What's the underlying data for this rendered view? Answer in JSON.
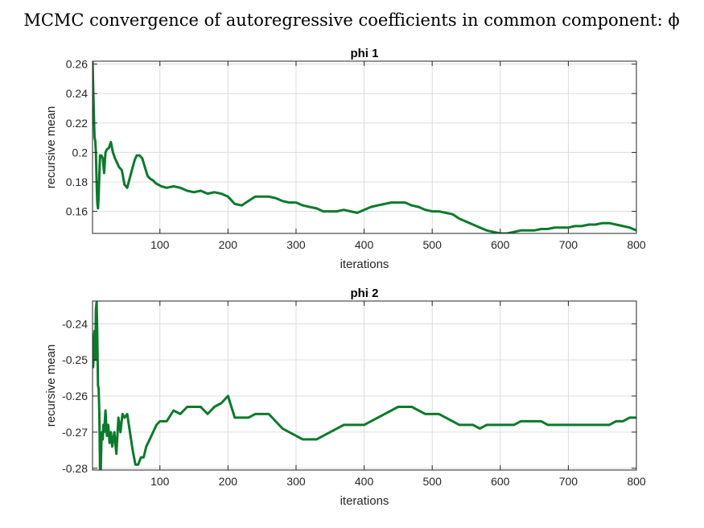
{
  "figure_title": "MCMC convergence of autoregressive coefficients in common component: ϕ",
  "chart_data": [
    {
      "type": "line",
      "title": "phi 1",
      "xlabel": "iterations",
      "ylabel": "recursive mean",
      "xlim": [
        1,
        800
      ],
      "ylim": [
        0.145,
        0.262
      ],
      "x_ticks": [
        100,
        200,
        300,
        400,
        500,
        600,
        700,
        800
      ],
      "y_ticks": [
        0.16,
        0.18,
        0.2,
        0.22,
        0.24,
        0.26
      ],
      "x_tick_labels": [
        "100",
        "200",
        "300",
        "400",
        "500",
        "600",
        "700",
        "800"
      ],
      "y_tick_labels": [
        "0.16",
        "0.18",
        "0.2",
        "0.22",
        "0.24",
        "0.26"
      ],
      "grid": true,
      "series": [
        {
          "color": "#0b7a2b",
          "x": [
            1,
            2,
            3,
            4,
            5,
            6,
            7,
            8,
            9,
            10,
            12,
            14,
            16,
            18,
            20,
            22,
            25,
            28,
            31,
            34,
            37,
            40,
            44,
            48,
            52,
            56,
            60,
            63,
            66,
            70,
            74,
            78,
            82,
            86,
            90,
            94,
            98,
            102,
            110,
            120,
            130,
            140,
            150,
            160,
            170,
            180,
            190,
            200,
            210,
            220,
            230,
            240,
            250,
            260,
            270,
            280,
            290,
            300,
            310,
            320,
            330,
            340,
            350,
            360,
            370,
            380,
            390,
            400,
            410,
            420,
            430,
            440,
            450,
            460,
            470,
            480,
            490,
            500,
            510,
            520,
            530,
            540,
            550,
            560,
            570,
            580,
            590,
            600,
            610,
            620,
            630,
            640,
            650,
            660,
            670,
            680,
            690,
            700,
            710,
            720,
            730,
            740,
            750,
            760,
            770,
            780,
            790,
            800
          ],
          "y": [
            0.262,
            0.245,
            0.225,
            0.21,
            0.208,
            0.2,
            0.18,
            0.166,
            0.162,
            0.17,
            0.198,
            0.198,
            0.196,
            0.186,
            0.2,
            0.202,
            0.203,
            0.207,
            0.2,
            0.196,
            0.193,
            0.19,
            0.188,
            0.178,
            0.176,
            0.183,
            0.19,
            0.195,
            0.198,
            0.198,
            0.196,
            0.19,
            0.184,
            0.182,
            0.181,
            0.179,
            0.178,
            0.177,
            0.176,
            0.177,
            0.176,
            0.174,
            0.173,
            0.174,
            0.172,
            0.173,
            0.172,
            0.17,
            0.165,
            0.164,
            0.167,
            0.17,
            0.17,
            0.17,
            0.169,
            0.167,
            0.166,
            0.166,
            0.164,
            0.163,
            0.162,
            0.16,
            0.16,
            0.16,
            0.161,
            0.16,
            0.159,
            0.161,
            0.163,
            0.164,
            0.165,
            0.166,
            0.166,
            0.166,
            0.164,
            0.163,
            0.161,
            0.16,
            0.16,
            0.159,
            0.158,
            0.155,
            0.153,
            0.151,
            0.149,
            0.147,
            0.146,
            0.145,
            0.145,
            0.146,
            0.147,
            0.147,
            0.147,
            0.148,
            0.148,
            0.149,
            0.149,
            0.149,
            0.15,
            0.15,
            0.151,
            0.151,
            0.152,
            0.152,
            0.151,
            0.15,
            0.149,
            0.147
          ]
        }
      ]
    },
    {
      "type": "line",
      "title": "phi 2",
      "xlabel": "iterations",
      "ylabel": "recursive mean",
      "xlim": [
        1,
        800
      ],
      "ylim": [
        -0.2805,
        -0.2337
      ],
      "x_ticks": [
        100,
        200,
        300,
        400,
        500,
        600,
        700,
        800
      ],
      "y_ticks": [
        -0.28,
        -0.27,
        -0.26,
        -0.25,
        -0.24
      ],
      "x_tick_labels": [
        "100",
        "200",
        "300",
        "400",
        "500",
        "600",
        "700",
        "800"
      ],
      "y_tick_labels": [
        "-0.28",
        "-0.27",
        "-0.26",
        "-0.25",
        "-0.24"
      ],
      "grid": true,
      "series": [
        {
          "color": "#0b7a2b",
          "x": [
            1,
            2,
            3,
            4,
            5,
            6,
            7,
            8,
            9,
            10,
            11,
            12,
            13,
            14,
            15,
            16,
            17,
            18,
            20,
            22,
            24,
            26,
            28,
            30,
            33,
            36,
            39,
            42,
            45,
            48,
            52,
            56,
            60,
            64,
            68,
            72,
            76,
            80,
            85,
            90,
            95,
            100,
            110,
            120,
            130,
            140,
            150,
            160,
            170,
            180,
            190,
            200,
            210,
            220,
            230,
            240,
            250,
            260,
            270,
            280,
            290,
            300,
            310,
            320,
            330,
            340,
            350,
            360,
            370,
            380,
            390,
            400,
            410,
            420,
            430,
            440,
            450,
            460,
            470,
            480,
            490,
            500,
            510,
            520,
            530,
            540,
            550,
            560,
            570,
            580,
            590,
            600,
            610,
            620,
            630,
            640,
            650,
            660,
            670,
            680,
            690,
            700,
            710,
            720,
            730,
            740,
            750,
            760,
            770,
            780,
            790,
            800
          ],
          "y": [
            -0.248,
            -0.252,
            -0.244,
            -0.242,
            -0.25,
            -0.236,
            -0.234,
            -0.243,
            -0.257,
            -0.258,
            -0.265,
            -0.28,
            -0.281,
            -0.273,
            -0.27,
            -0.272,
            -0.268,
            -0.27,
            -0.264,
            -0.271,
            -0.268,
            -0.273,
            -0.27,
            -0.274,
            -0.27,
            -0.276,
            -0.266,
            -0.27,
            -0.265,
            -0.266,
            -0.265,
            -0.27,
            -0.275,
            -0.279,
            -0.279,
            -0.277,
            -0.277,
            -0.274,
            -0.272,
            -0.27,
            -0.268,
            -0.267,
            -0.267,
            -0.264,
            -0.265,
            -0.263,
            -0.263,
            -0.263,
            -0.265,
            -0.263,
            -0.262,
            -0.26,
            -0.266,
            -0.266,
            -0.266,
            -0.265,
            -0.265,
            -0.265,
            -0.267,
            -0.269,
            -0.27,
            -0.271,
            -0.272,
            -0.272,
            -0.272,
            -0.271,
            -0.27,
            -0.269,
            -0.268,
            -0.268,
            -0.268,
            -0.268,
            -0.267,
            -0.266,
            -0.265,
            -0.264,
            -0.263,
            -0.263,
            -0.263,
            -0.264,
            -0.265,
            -0.265,
            -0.265,
            -0.266,
            -0.267,
            -0.268,
            -0.268,
            -0.268,
            -0.269,
            -0.268,
            -0.268,
            -0.268,
            -0.268,
            -0.268,
            -0.267,
            -0.267,
            -0.267,
            -0.267,
            -0.268,
            -0.268,
            -0.268,
            -0.268,
            -0.268,
            -0.268,
            -0.268,
            -0.268,
            -0.268,
            -0.268,
            -0.267,
            -0.267,
            -0.266,
            -0.266
          ]
        }
      ]
    }
  ]
}
